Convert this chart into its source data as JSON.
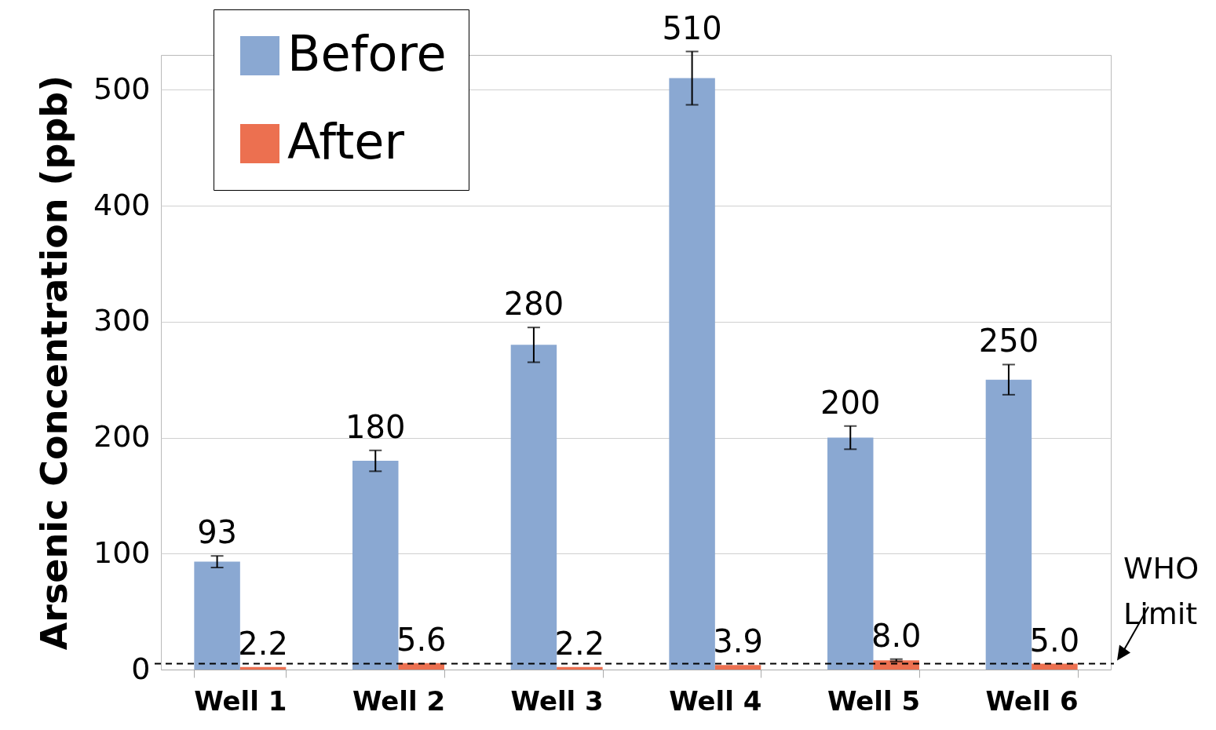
{
  "chart_data": {
    "type": "bar",
    "ylabel": "Arsenic Concentration (ppb)",
    "categories": [
      "Well 1",
      "Well 2",
      "Well 3",
      "Well 4",
      "Well 5",
      "Well 6"
    ],
    "series": [
      {
        "name": "Before",
        "color": "#8aa8d2",
        "values": [
          93,
          180,
          280,
          510,
          200,
          250
        ],
        "errors": [
          5,
          9,
          15,
          23,
          10,
          13
        ],
        "value_labels": [
          "93",
          "180",
          "280",
          "510",
          "200",
          "250"
        ]
      },
      {
        "name": "After",
        "color": "#ec7050",
        "values": [
          2.2,
          5.6,
          2.2,
          3.9,
          8.0,
          5.0
        ],
        "errors": [
          null,
          null,
          null,
          null,
          1,
          null
        ],
        "value_labels": [
          "2.2",
          "5.6",
          "2.2",
          "3.9",
          "8.0",
          "5.0"
        ]
      }
    ],
    "ylim": [
      0,
      530
    ],
    "yticks": [
      0,
      100,
      200,
      300,
      400,
      500
    ],
    "grid": "y",
    "legend": "top left",
    "ref_lines": [
      {
        "axis": "y",
        "value": 5,
        "label": "WHO Limit",
        "line_style": "dashed",
        "color": "#000000"
      }
    ]
  }
}
